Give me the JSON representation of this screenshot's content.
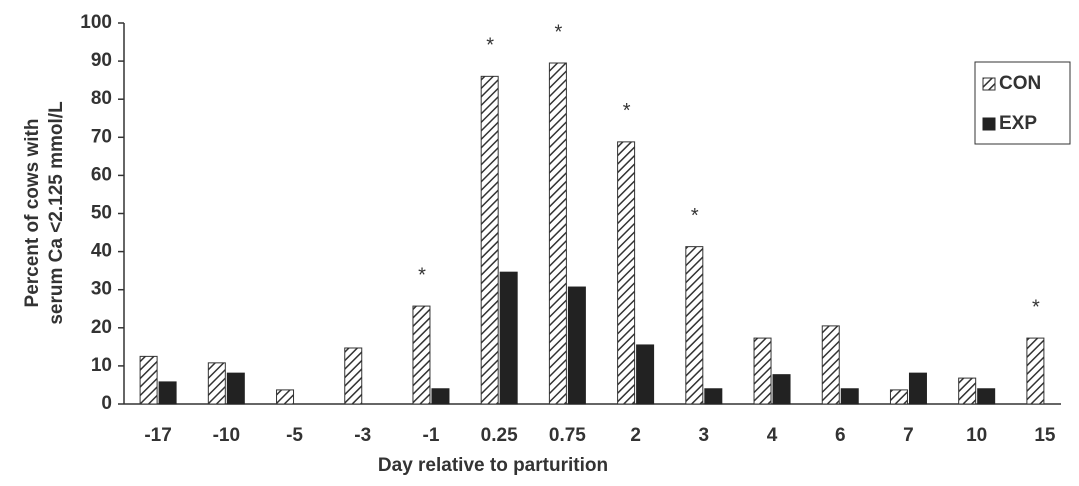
{
  "chart_data": {
    "type": "bar",
    "categories": [
      "-17",
      "-10",
      "-5",
      "-3",
      "-1",
      "0.25",
      "0.75",
      "2",
      "3",
      "4",
      "6",
      "7",
      "10",
      "15"
    ],
    "series": [
      {
        "name": "CON",
        "color": "#333333",
        "pattern": "hatch",
        "values": [
          12.5,
          10.8,
          3.7,
          14.7,
          25.7,
          86,
          89.5,
          68.8,
          41.3,
          17.3,
          20.5,
          3.7,
          6.8,
          17.3
        ]
      },
      {
        "name": "EXP",
        "color": "#222222",
        "pattern": "solid",
        "values": [
          5.8,
          8.1,
          0,
          0,
          4,
          34.6,
          30.7,
          15.5,
          4,
          7.7,
          4,
          8.1,
          4,
          0
        ]
      }
    ],
    "ylim": [
      0,
      100
    ],
    "yticks": [
      0,
      10,
      20,
      30,
      40,
      50,
      60,
      70,
      80,
      90,
      100
    ],
    "xlabel": "Day relative to parturition",
    "ylabel": [
      "Percent of cows with",
      "serum Ca <2.125 mmol/L"
    ],
    "annotations": [
      {
        "x": "-1",
        "text": "*"
      },
      {
        "x": "0.25",
        "text": "*"
      },
      {
        "x": "0.75",
        "text": "*"
      },
      {
        "x": "2",
        "text": "*"
      },
      {
        "x": "3",
        "text": "*"
      },
      {
        "x": "15",
        "text": "*"
      }
    ],
    "legend": "top-right"
  }
}
